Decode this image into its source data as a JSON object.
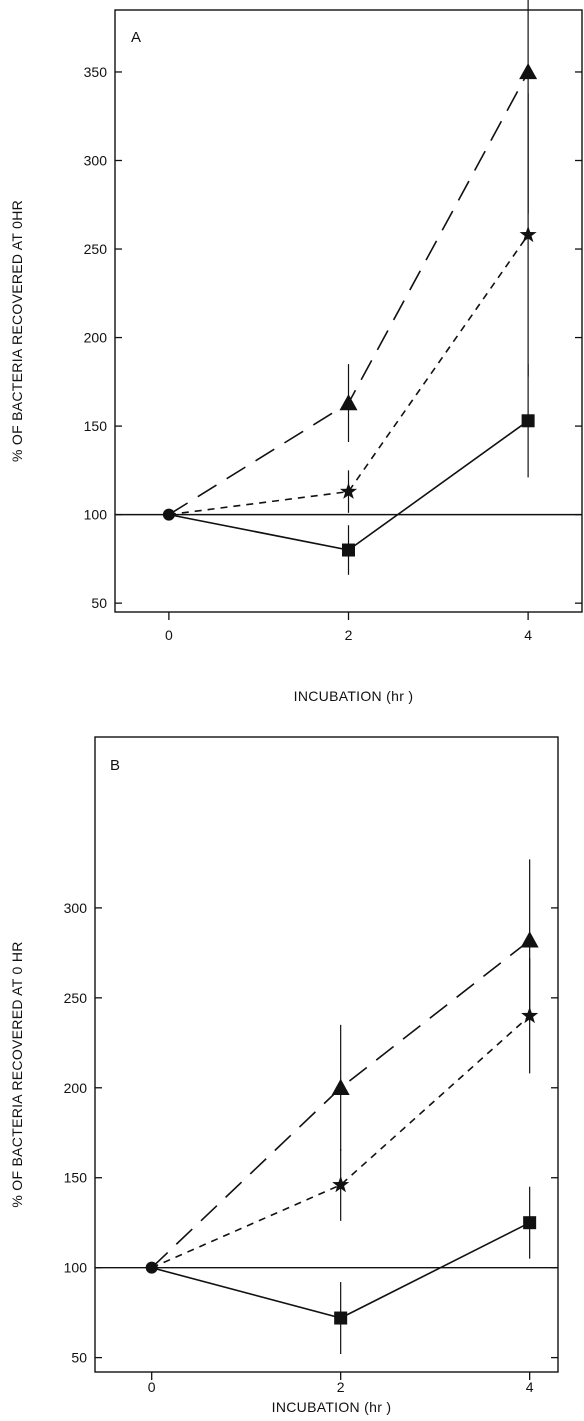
{
  "chart_data": [
    {
      "type": "line",
      "panel_label": "A",
      "xlabel": "INCUBATION  (hr )",
      "ylabel": "% OF BACTERIA RECOVERED AT 0HR",
      "x": [
        0,
        2,
        4
      ],
      "xticks": [
        "0",
        "2",
        "4"
      ],
      "yticks": [
        50,
        100,
        150,
        200,
        250,
        300,
        350
      ],
      "ylim": [
        45,
        385
      ],
      "xlim": [
        -0.6,
        4.6
      ],
      "reference_line": 100,
      "series": [
        {
          "marker": "triangle",
          "dash": "long-dash",
          "values": [
            100,
            163,
            350
          ],
          "errors": [
            0,
            22,
            80
          ]
        },
        {
          "marker": "star",
          "dash": "short-dash",
          "values": [
            100,
            113,
            258
          ],
          "errors": [
            0,
            12,
            80
          ]
        },
        {
          "marker": "square",
          "dash": "solid",
          "values": [
            100,
            80,
            153
          ],
          "errors": [
            0,
            14,
            32
          ]
        }
      ],
      "origin_marker": "circle"
    },
    {
      "type": "line",
      "panel_label": "B",
      "xlabel": "INCUBATION (hr )",
      "ylabel": "% OF BACTERIA RECOVERED AT 0 HR",
      "x": [
        0,
        2,
        4
      ],
      "xticks": [
        "0",
        "2",
        "4"
      ],
      "yticks": [
        50,
        100,
        150,
        200,
        250,
        300
      ],
      "ylim": [
        42,
        395
      ],
      "xlim": [
        -0.6,
        4.3
      ],
      "reference_line": 100,
      "series": [
        {
          "marker": "triangle",
          "dash": "long-dash",
          "values": [
            100,
            200,
            282
          ],
          "errors": [
            0,
            35,
            45
          ]
        },
        {
          "marker": "star",
          "dash": "short-dash",
          "values": [
            100,
            146,
            240
          ],
          "errors": [
            0,
            20,
            32
          ]
        },
        {
          "marker": "square",
          "dash": "solid",
          "values": [
            100,
            72,
            125
          ],
          "errors": [
            0,
            20,
            20
          ]
        }
      ],
      "origin_marker": "circle"
    }
  ]
}
